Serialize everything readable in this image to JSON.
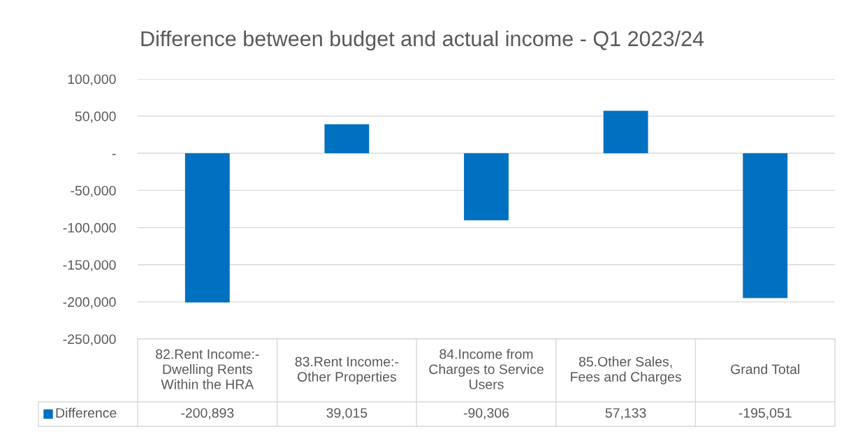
{
  "chart_data": {
    "type": "bar",
    "title": "Difference between budget and actual income - Q1 2023/24",
    "categories": [
      "82.Rent Income:-\nDwelling Rents\nWithin the HRA",
      "83.Rent Income:-\nOther Properties",
      "84.Income from\nCharges to Service\nUsers",
      "85.Other Sales,\nFees and Charges",
      "Grand Total"
    ],
    "series": [
      {
        "name": "Difference",
        "color": "#0070c0",
        "values": [
          -200893,
          39015,
          -90306,
          57133,
          -195051
        ],
        "value_labels": [
          "-200,893",
          "39,015",
          "-90,306",
          "57,133",
          "-195,051"
        ]
      }
    ],
    "ylim": [
      -250000,
      100000
    ],
    "yticks": [
      {
        "value": -250000,
        "label": "-250,000"
      },
      {
        "value": -200000,
        "label": "-200,000"
      },
      {
        "value": -150000,
        "label": "-150,000"
      },
      {
        "value": -100000,
        "label": "-100,000"
      },
      {
        "value": -50000,
        "label": "-50,000"
      },
      {
        "value": 0,
        "label": "-"
      },
      {
        "value": 50000,
        "label": "50,000"
      },
      {
        "value": 100000,
        "label": "100,000"
      }
    ],
    "grid": "y",
    "legend": "bottom left"
  }
}
